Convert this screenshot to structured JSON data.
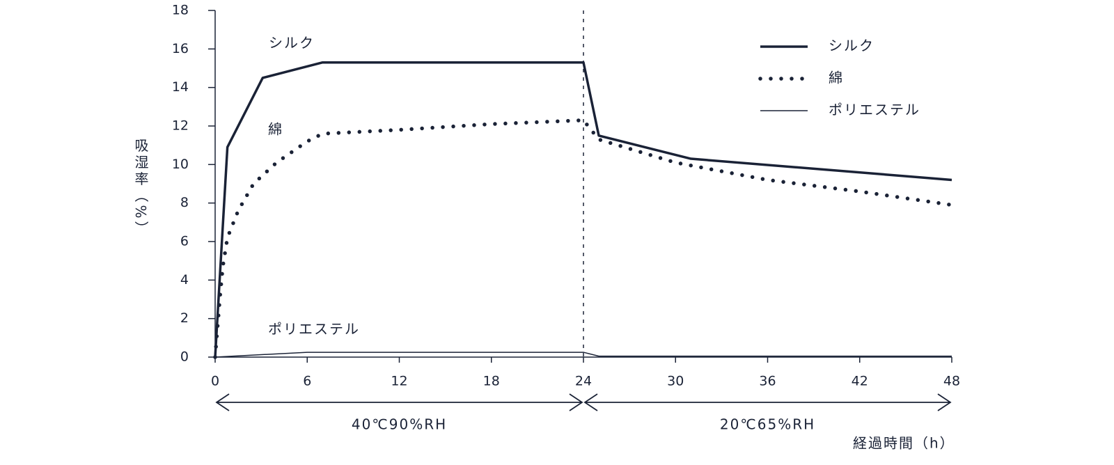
{
  "chart_data": {
    "type": "line",
    "xlabel": "経過時間（h）",
    "ylabel": "吸湿率（%）",
    "xlim": [
      0,
      48
    ],
    "xticks": [
      0,
      6,
      12,
      18,
      24,
      30,
      36,
      42,
      48
    ],
    "ylim": [
      0,
      18
    ],
    "yticks": [
      0,
      2,
      4,
      6,
      8,
      10,
      12,
      14,
      16,
      18
    ],
    "divider_x": 24,
    "periods": [
      {
        "label": "40℃90%RH",
        "range": [
          0,
          24
        ]
      },
      {
        "label": "20℃65%RH",
        "range": [
          24,
          48
        ]
      }
    ],
    "legend": "upper right",
    "series": [
      {
        "name": "シルク",
        "color": "#1a2236",
        "style": "solid",
        "x": [
          0,
          0.8,
          3.1,
          7,
          24,
          25,
          28,
          31,
          48
        ],
        "values": [
          0,
          10.9,
          14.5,
          15.3,
          15.3,
          11.5,
          10.9,
          10.3,
          9.2
        ]
      },
      {
        "name": "綿",
        "color": "#1a2236",
        "style": "dotted",
        "x": [
          0,
          0.3,
          0.5,
          0.8,
          1.5,
          2.5,
          4,
          6,
          7,
          12,
          18,
          24,
          25,
          30,
          36,
          42,
          48
        ],
        "values": [
          0,
          3,
          4.7,
          6.2,
          7.6,
          9,
          10.1,
          11.2,
          11.6,
          11.8,
          12.1,
          12.3,
          11.3,
          10.1,
          9.2,
          8.6,
          7.9
        ]
      },
      {
        "name": "ポリエステル",
        "color": "#1a2236",
        "style": "thin",
        "x": [
          0,
          6,
          24,
          25,
          48
        ],
        "values": [
          0,
          0.25,
          0.25,
          0.05,
          0.05
        ]
      }
    ],
    "annotations": [
      {
        "text": "シルク",
        "series": 0
      },
      {
        "text": "綿",
        "series": 1
      },
      {
        "text": "ポリエステル",
        "series": 2
      }
    ]
  }
}
